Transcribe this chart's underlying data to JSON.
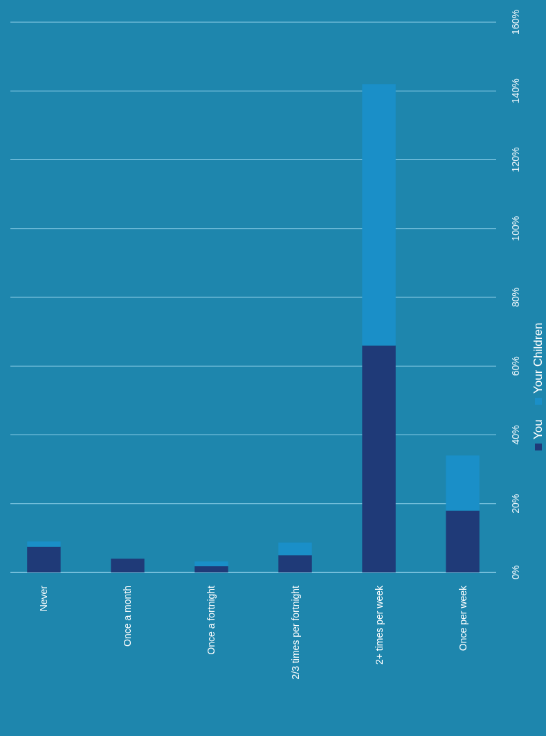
{
  "chart_data": {
    "type": "bar",
    "stacked": true,
    "categories": [
      "Never",
      "Once a month",
      "Once a fortnight",
      "2/3 times per fortnight",
      "2+ times per week",
      "Once per week"
    ],
    "series": [
      {
        "name": "You",
        "color": "#1f3a78",
        "values": [
          7.5,
          4,
          1.8,
          5,
          66,
          18
        ]
      },
      {
        "name": "Your Children",
        "color": "#1a8fc8",
        "values": [
          1.5,
          0,
          1.4,
          3.7,
          76,
          16
        ]
      }
    ],
    "ylim": [
      0,
      160
    ],
    "yticks": [
      {
        "value": 0,
        "label": "0%"
      },
      {
        "value": 20,
        "label": "20%"
      },
      {
        "value": 40,
        "label": "40%"
      },
      {
        "value": 60,
        "label": "60%"
      },
      {
        "value": 80,
        "label": "80%"
      },
      {
        "value": 100,
        "label": "100%"
      },
      {
        "value": 120,
        "label": "120%"
      },
      {
        "value": 140,
        "label": "140%"
      },
      {
        "value": 160,
        "label": "160%"
      }
    ],
    "grid": true,
    "legend": "bottom"
  }
}
